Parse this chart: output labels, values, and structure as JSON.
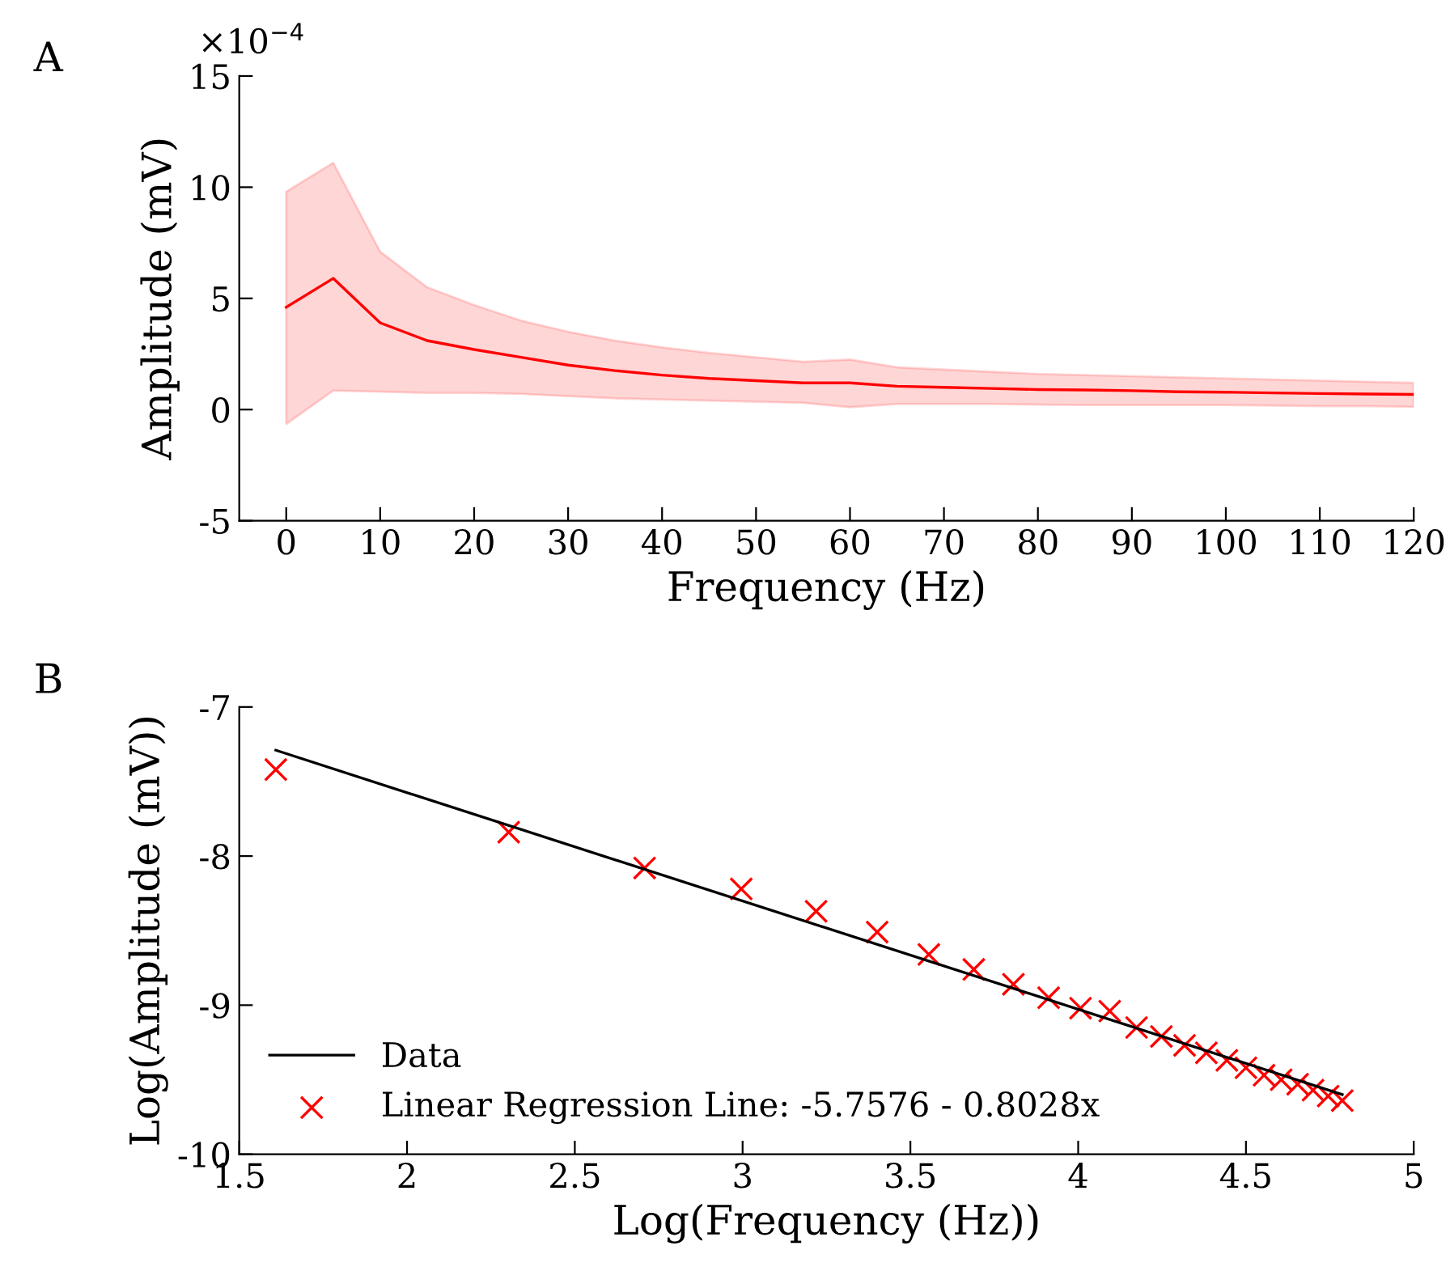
{
  "chart_data": [
    {
      "type": "line",
      "xlabel": "Frequency (Hz)",
      "ylabel": "Amplitude (mV)",
      "annotations": [
        "A",
        "×10$^{−4}$"
      ],
      "x": [
        0,
        5,
        10,
        15,
        20,
        25,
        30,
        35,
        40,
        45,
        50,
        55,
        60,
        65,
        70,
        75,
        80,
        85,
        90,
        95,
        100,
        105,
        110,
        115,
        120
      ],
      "series": [
        {
          "color": "#ff0000",
          "values": [
            4.6,
            5.9,
            3.9,
            3.1,
            2.7,
            2.35,
            2.0,
            1.75,
            1.55,
            1.4,
            1.3,
            1.2,
            1.2,
            1.05,
            1.0,
            0.95,
            0.9,
            0.88,
            0.85,
            0.8,
            0.78,
            0.75,
            0.72,
            0.7,
            0.68
          ],
          "upper": [
            9.8,
            11.1,
            7.1,
            5.5,
            4.7,
            4.0,
            3.5,
            3.1,
            2.8,
            2.55,
            2.35,
            2.15,
            2.25,
            1.9,
            1.8,
            1.7,
            1.6,
            1.55,
            1.5,
            1.45,
            1.4,
            1.35,
            1.3,
            1.25,
            1.2
          ],
          "lower": [
            -0.65,
            0.85,
            0.8,
            0.75,
            0.75,
            0.7,
            0.6,
            0.5,
            0.45,
            0.4,
            0.35,
            0.3,
            0.1,
            0.25,
            0.25,
            0.25,
            0.22,
            0.2,
            0.2,
            0.2,
            0.2,
            0.18,
            0.15,
            0.15,
            0.12
          ]
        }
      ],
      "xlim": [
        -5,
        120
      ],
      "xticks": [
        0,
        10,
        20,
        30,
        40,
        50,
        60,
        70,
        80,
        90,
        100,
        110,
        120
      ],
      "ylim": [
        -5,
        15
      ],
      "yticks": [
        -5,
        0,
        5,
        10,
        15
      ],
      "grid": false,
      "legend": false
    },
    {
      "type": "line",
      "xlabel": "Log(Frequency (Hz))",
      "ylabel": "Log(Amplitude (mV))",
      "annotations": [
        "B"
      ],
      "series": [
        {
          "name": "Data",
          "type": "line",
          "color": "#000000",
          "marker": "none",
          "x": [
            1.609,
            4.787
          ],
          "values": [
            -7.29,
            -9.6
          ]
        },
        {
          "name": "Linear Regression Line: -5.7576 - 0.8028x",
          "type": "scatter",
          "color": "#ff0000",
          "marker": "cross",
          "x": [
            1.609,
            2.303,
            2.708,
            2.996,
            3.219,
            3.401,
            3.555,
            3.689,
            3.807,
            3.912,
            4.007,
            4.094,
            4.174,
            4.248,
            4.317,
            4.382,
            4.443,
            4.5,
            4.554,
            4.605,
            4.654,
            4.7,
            4.745,
            4.787
          ],
          "values": [
            -7.42,
            -7.84,
            -8.08,
            -8.22,
            -8.37,
            -8.51,
            -8.66,
            -8.76,
            -8.86,
            -8.95,
            -9.02,
            -9.04,
            -9.15,
            -9.21,
            -9.27,
            -9.32,
            -9.37,
            -9.42,
            -9.47,
            -9.5,
            -9.53,
            -9.57,
            -9.61,
            -9.64
          ]
        }
      ],
      "xlim": [
        1.5,
        5
      ],
      "xticks": [
        1.5,
        2,
        2.5,
        3,
        3.5,
        4,
        4.5,
        5
      ],
      "ylim": [
        -10,
        -7
      ],
      "yticks": [
        -10,
        -9,
        -8,
        -7
      ],
      "grid": false,
      "legend": "bottom left"
    }
  ]
}
